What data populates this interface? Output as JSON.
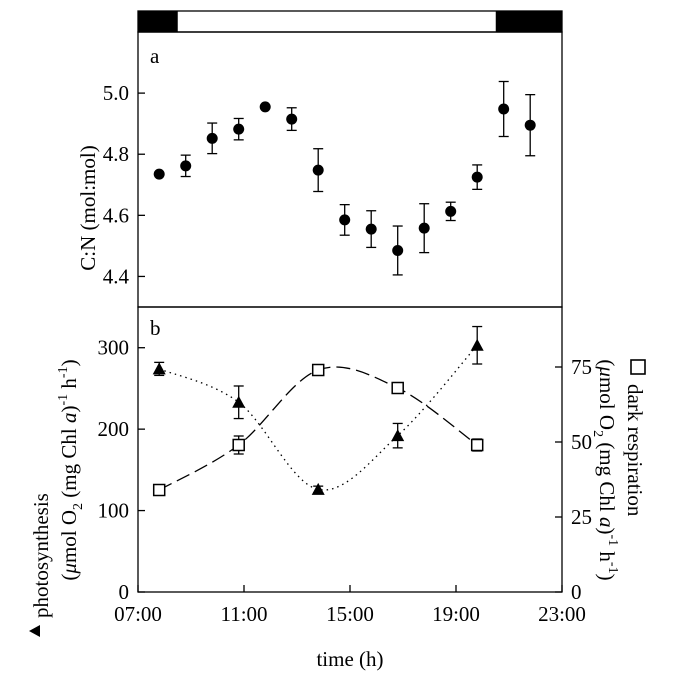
{
  "chart_data": [
    {
      "type": "scatter",
      "panel_label": "a",
      "ylabel": "C:N (mol:mol)",
      "ylim": [
        4.3,
        5.2
      ],
      "yticks": [
        "4.4",
        "4.6",
        "4.8",
        "5.0"
      ],
      "photoperiod_bar": {
        "dark_until": 8.5,
        "light_until": 20.5
      },
      "series": [
        {
          "marker": "filled-circle",
          "points": [
            {
              "x": 7.8,
              "y": 4.735,
              "err": 0
            },
            {
              "x": 8.8,
              "y": 4.762,
              "err": 0.035
            },
            {
              "x": 9.8,
              "y": 4.852,
              "err": 0.05
            },
            {
              "x": 10.8,
              "y": 4.882,
              "err": 0.035
            },
            {
              "x": 11.8,
              "y": 4.955,
              "err": 0
            },
            {
              "x": 12.8,
              "y": 4.915,
              "err": 0.037
            },
            {
              "x": 13.8,
              "y": 4.748,
              "err": 0.07
            },
            {
              "x": 14.8,
              "y": 4.585,
              "err": 0.05
            },
            {
              "x": 15.8,
              "y": 4.555,
              "err": 0.06
            },
            {
              "x": 16.8,
              "y": 4.485,
              "err": 0.08
            },
            {
              "x": 17.8,
              "y": 4.558,
              "err": 0.08
            },
            {
              "x": 18.8,
              "y": 4.613,
              "err": 0.03
            },
            {
              "x": 19.8,
              "y": 4.725,
              "err": 0.04
            },
            {
              "x": 20.8,
              "y": 4.948,
              "err": 0.09
            },
            {
              "x": 21.8,
              "y": 4.895,
              "err": 0.1
            }
          ]
        }
      ]
    },
    {
      "type": "line",
      "panel_label": "b",
      "xlabel": "time (h)",
      "xlim": [
        7,
        23
      ],
      "xticks": [
        "07:00",
        "11:00",
        "15:00",
        "19:00",
        "23:00"
      ],
      "ylabel_left": "photosynthesis",
      "ylabel_left_units": "(μmol O2 (mg Chl a)-1 h-1)",
      "ylim_left": [
        0,
        350
      ],
      "yticks_left": [
        "0",
        "100",
        "200",
        "300"
      ],
      "ylabel_right": "dark respiration",
      "ylabel_right_units": "(μmol O2 (mg Chl a)-1 h-1)",
      "ylim_right": [
        0,
        95
      ],
      "yticks_right": [
        "0",
        "25",
        "50",
        "75"
      ],
      "series": [
        {
          "name": "photosynthesis",
          "marker": "filled-triangle",
          "line": "dotted",
          "axis": "left",
          "points": [
            {
              "x": 7.8,
              "y": 274,
              "err": 8
            },
            {
              "x": 10.8,
              "y": 233,
              "err": 20
            },
            {
              "x": 13.8,
              "y": 126,
              "err": 4
            },
            {
              "x": 16.8,
              "y": 192,
              "err": 15
            },
            {
              "x": 19.8,
              "y": 303,
              "err": 23
            }
          ]
        },
        {
          "name": "dark respiration",
          "marker": "open-square",
          "line": "dashed",
          "axis": "right",
          "points": [
            {
              "x": 7.8,
              "y": 34,
              "err": 1
            },
            {
              "x": 10.8,
              "y": 49,
              "err": 3
            },
            {
              "x": 13.8,
              "y": 74,
              "err": 1.5
            },
            {
              "x": 16.8,
              "y": 68,
              "err": 1.5
            },
            {
              "x": 19.8,
              "y": 49,
              "err": 2
            }
          ]
        }
      ]
    }
  ]
}
